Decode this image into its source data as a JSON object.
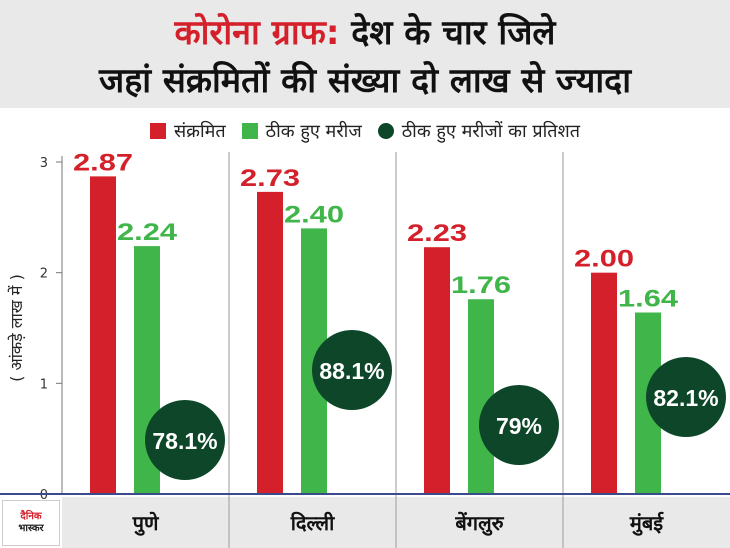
{
  "title": {
    "accent": "कोरोना ग्राफ:",
    "rest_line1": " देश के चार जिले",
    "line2": "जहां संक्रमितों की संख्या दो लाख से ज्यादा"
  },
  "legend": [
    {
      "label": "संक्रमित",
      "color": "#d4202a",
      "shape": "square"
    },
    {
      "label": "ठीक हुए मरीज",
      "color": "#3fb54a",
      "shape": "square"
    },
    {
      "label": "ठीक हुए मरीजों का प्रतिशत",
      "color": "#0d4628",
      "shape": "circle"
    }
  ],
  "logo": {
    "line1": "दैनिक",
    "line2": "भास्कर"
  },
  "chart_data": {
    "type": "bar",
    "ylabel": "( आंकड़े लाख में )",
    "ylim": [
      0,
      3
    ],
    "yticks": [
      "0",
      "1",
      "2",
      "3"
    ],
    "grid": false,
    "legend_position": "top",
    "categories": [
      "पुणे",
      "दिल्ली",
      "बेंगलुरु",
      "मुंबई"
    ],
    "series": [
      {
        "name": "संक्रमित",
        "color": "#d4202a",
        "values": [
          2.87,
          2.73,
          2.23,
          2.0
        ],
        "labels": [
          "2.87",
          "2.73",
          "2.23",
          "2.00"
        ]
      },
      {
        "name": "ठीक हुए मरीज",
        "color": "#3fb54a",
        "values": [
          2.24,
          2.4,
          1.76,
          1.64
        ],
        "labels": [
          "2.24",
          "2.40",
          "1.76",
          "1.64"
        ]
      }
    ],
    "recovery_rate": {
      "name": "ठीक हुए मरीजों का प्रतिशत",
      "color": "#0d4628",
      "values": [
        78.1,
        88.1,
        79,
        82.1
      ],
      "labels": [
        "78.1%",
        "88.1%",
        "79%",
        "82.1%"
      ]
    }
  }
}
